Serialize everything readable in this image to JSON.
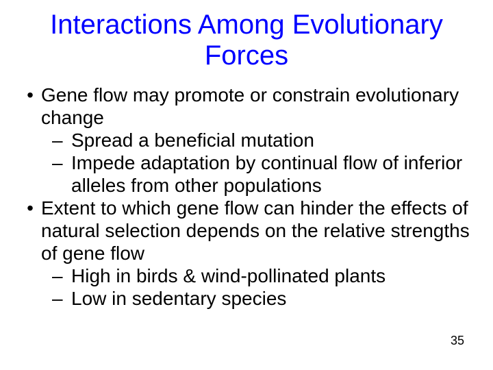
{
  "title": {
    "text": "Interactions Among Evolutionary Forces",
    "color": "#0000ff",
    "fontsize": 40
  },
  "body": {
    "color": "#000000",
    "fontsize": 28,
    "bullet_char": "•",
    "dash_char": "–",
    "items": [
      {
        "text": "Gene flow may promote or constrain evolutionary change",
        "sub": [
          {
            "text": "Spread a beneficial mutation"
          },
          {
            "text": "Impede adaptation by continual flow of inferior alleles from other populations"
          }
        ]
      },
      {
        "text": "Extent to which gene flow can hinder the effects of natural selection depends on the relative strengths of gene flow",
        "sub": [
          {
            "text": "High in birds & wind-pollinated plants"
          },
          {
            "text": "Low in sedentary species"
          }
        ]
      }
    ]
  },
  "pagenum": {
    "text": "35",
    "color": "#000000",
    "fontsize": 18
  }
}
